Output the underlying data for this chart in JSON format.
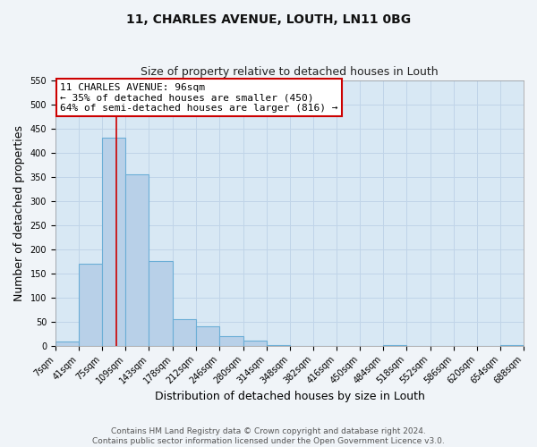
{
  "title_line1": "11, CHARLES AVENUE, LOUTH, LN11 0BG",
  "title_line2": "Size of property relative to detached houses in Louth",
  "xlabel": "Distribution of detached houses by size in Louth",
  "ylabel": "Number of detached properties",
  "bin_edges": [
    7,
    41,
    75,
    109,
    143,
    178,
    212,
    246,
    280,
    314,
    348,
    382,
    416,
    450,
    484,
    518,
    552,
    586,
    620,
    654,
    688
  ],
  "bar_heights": [
    8,
    170,
    430,
    355,
    175,
    55,
    40,
    20,
    11,
    1,
    0,
    0,
    0,
    0,
    1,
    0,
    0,
    0,
    0,
    1
  ],
  "bar_color": "#b8d0e8",
  "bar_edgecolor": "#6baed6",
  "bar_linewidth": 0.8,
  "property_size": 96,
  "vline_color": "#cc0000",
  "vline_linewidth": 1.2,
  "ylim": [
    0,
    550
  ],
  "yticks": [
    0,
    50,
    100,
    150,
    200,
    250,
    300,
    350,
    400,
    450,
    500,
    550
  ],
  "tick_labels": [
    "7sqm",
    "41sqm",
    "75sqm",
    "109sqm",
    "143sqm",
    "178sqm",
    "212sqm",
    "246sqm",
    "280sqm",
    "314sqm",
    "348sqm",
    "382sqm",
    "416sqm",
    "450sqm",
    "484sqm",
    "518sqm",
    "552sqm",
    "586sqm",
    "620sqm",
    "654sqm",
    "688sqm"
  ],
  "annotation_title": "11 CHARLES AVENUE: 96sqm",
  "annotation_line1": "← 35% of detached houses are smaller (450)",
  "annotation_line2": "64% of semi-detached houses are larger (816) →",
  "annotation_box_facecolor": "#ffffff",
  "annotation_box_edgecolor": "#cc0000",
  "footer_line1": "Contains HM Land Registry data © Crown copyright and database right 2024.",
  "footer_line2": "Contains public sector information licensed under the Open Government Licence v3.0.",
  "grid_color": "#c0d4e8",
  "plot_bg_color": "#d8e8f4",
  "fig_bg_color": "#f0f4f8",
  "title_fontsize": 10,
  "subtitle_fontsize": 9,
  "axis_label_fontsize": 9,
  "tick_fontsize": 7,
  "annotation_fontsize": 8,
  "footer_fontsize": 6.5
}
